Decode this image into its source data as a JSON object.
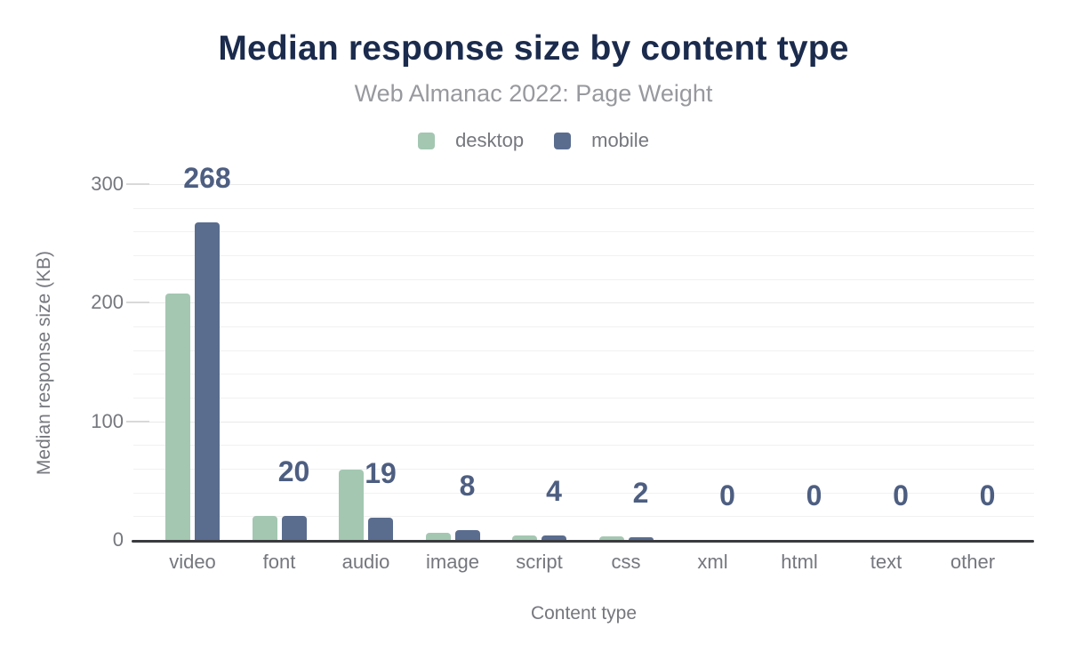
{
  "chart_data": {
    "type": "bar",
    "title": "Median response size by content type",
    "subtitle": "Web Almanac 2022: Page Weight",
    "xlabel": "Content type",
    "ylabel": "Median response size (KB)",
    "categories": [
      "video",
      "font",
      "audio",
      "image",
      "script",
      "css",
      "xml",
      "html",
      "text",
      "other"
    ],
    "series": [
      {
        "name": "desktop",
        "color": "#a4c7b2",
        "values": [
          208,
          20,
          59,
          6,
          4,
          3,
          0,
          0,
          0,
          0
        ]
      },
      {
        "name": "mobile",
        "color": "#5a6d8f",
        "values": [
          268,
          20,
          19,
          8,
          4,
          2,
          0,
          0,
          0,
          0
        ]
      }
    ],
    "data_label_series": "mobile",
    "data_labels": [
      "268",
      "20",
      "19",
      "8",
      "4",
      "2",
      "0",
      "0",
      "0",
      "0"
    ],
    "y_ticks": [
      0,
      100,
      200,
      300
    ],
    "ylim": [
      0,
      300
    ],
    "grid": {
      "on": true,
      "minor_step": 20,
      "major_step": 100
    },
    "legend_position": "top"
  },
  "styles": {
    "title_color": "#1b2b4d",
    "subtitle_color": "#98999e",
    "axis_text_color": "#75777e",
    "data_label_color": "#4d5e81",
    "desktop_color": "#a4c7b2",
    "mobile_color": "#5a6d8f",
    "axis_line_color": "#3a3b3f",
    "grid_minor_color": "#f1f1f1",
    "grid_major_color": "#e9e9e9"
  }
}
